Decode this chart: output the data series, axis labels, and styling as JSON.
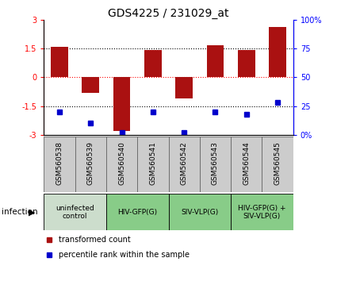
{
  "title": "GDS4225 / 231029_at",
  "samples": [
    "GSM560538",
    "GSM560539",
    "GSM560540",
    "GSM560541",
    "GSM560542",
    "GSM560543",
    "GSM560544",
    "GSM560545"
  ],
  "transformed_counts": [
    1.6,
    -0.8,
    -2.8,
    1.4,
    -1.1,
    1.65,
    1.4,
    2.6
  ],
  "percentile_ranks": [
    20,
    10,
    2,
    20,
    2,
    20,
    18,
    28
  ],
  "ylim_left": [
    -3,
    3
  ],
  "ylim_right": [
    0,
    100
  ],
  "bar_color": "#aa1111",
  "dot_color": "#0000cc",
  "groups": [
    {
      "label": "uninfected\ncontrol",
      "start": 0,
      "end": 2,
      "color": "#ccddcc"
    },
    {
      "label": "HIV-GFP(G)",
      "start": 2,
      "end": 4,
      "color": "#88cc88"
    },
    {
      "label": "SIV-VLP(G)",
      "start": 4,
      "end": 6,
      "color": "#88cc88"
    },
    {
      "label": "HIV-GFP(G) +\nSIV-VLP(G)",
      "start": 6,
      "end": 8,
      "color": "#88cc88"
    }
  ],
  "infection_label": "infection",
  "legend_items": [
    {
      "color": "#aa1111",
      "label": "transformed count"
    },
    {
      "color": "#0000cc",
      "label": "percentile rank within the sample"
    }
  ],
  "dotted_lines": [
    1.5,
    -1.5
  ],
  "zero_line_y": 0,
  "sample_box_color": "#cccccc",
  "sample_box_edge": "#666666"
}
